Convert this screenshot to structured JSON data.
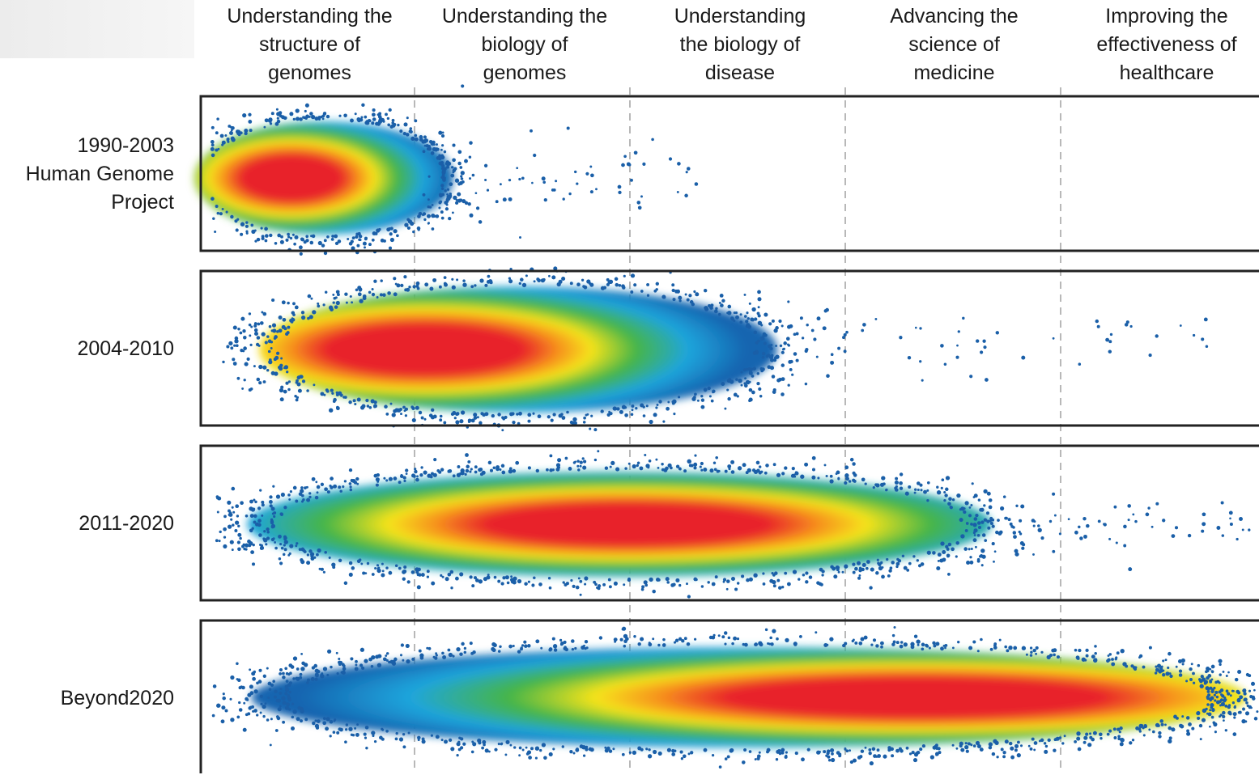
{
  "columns": [
    "Understanding the\nstructure of\ngenomes",
    "Understanding the\nbiology of\ngenomes",
    "Understanding\nthe biology of\ndisease",
    "Advancing the\nscience of\nmedicine",
    "Improving the\neffectiveness of\nhealthcare"
  ],
  "rows": [
    {
      "label": "1990-2003\nHuman Genome\nProject",
      "peak_region": "Understanding the structure of genomes",
      "reach_region": "Understanding the biology of disease"
    },
    {
      "label": "2004-2010",
      "peak_region": "Understanding the biology of genomes",
      "reach_region": "Improving the effectiveness of healthcare"
    },
    {
      "label": "2011-2020",
      "peak_region": "Understanding the biology of disease",
      "reach_region": "Improving the effectiveness of healthcare"
    },
    {
      "label": "Beyond2020",
      "peak_region": "Advancing the science of medicine",
      "reach_region": "Improving the effectiveness of healthcare"
    }
  ],
  "colors": {
    "core": "#e8202a",
    "mid_orange": "#f7941d",
    "mid_yellow": "#f5e31a",
    "mid_green": "#46b549",
    "mid_cyan": "#1fa5dc",
    "edge_blue": "#1565b0",
    "dot": "#1a5fa8",
    "frame": "#222222",
    "divider": "#888888"
  }
}
